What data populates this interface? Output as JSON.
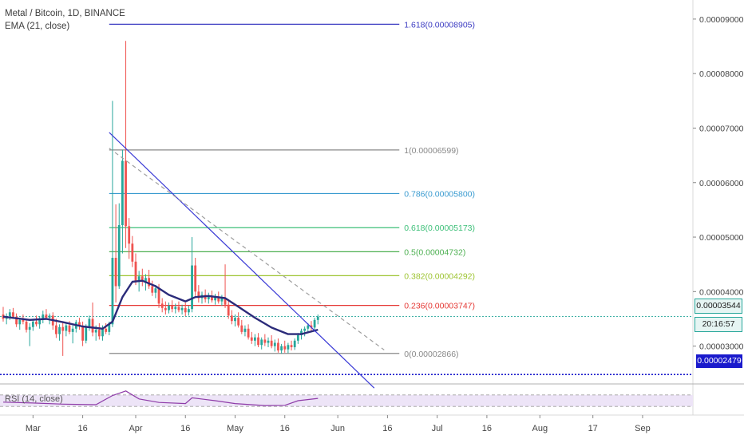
{
  "legend": {
    "title": "Metal / Bitcoin, 1D, BINANCE",
    "indicator": "EMA (21, close)",
    "rsi": "RSI (14, close)"
  },
  "price_tags": {
    "last_price": "0.00003544",
    "countdown": "20:16:57",
    "level": "0.00002479"
  },
  "colors": {
    "fib_1618": "#3d3dc2",
    "fib_1": "#888888",
    "fib_0786": "#3a9bd0",
    "fib_0618": "#3cbf78",
    "fib_05": "#4caf50",
    "fib_0382": "#9dc431",
    "fib_0236": "#e53935",
    "fib_0": "#888888",
    "ema": "#2b2b7a",
    "trendline": "#3b3bd6",
    "up_candle": "#26a69a",
    "down_candle": "#ef5350",
    "rsi_line": "#8e3ba8",
    "rsi_band": "#ede4f7",
    "dotted_level": "#1a1acc"
  },
  "chart_data": {
    "type": "candlestick",
    "symbol": "Metal / Bitcoin",
    "timeframe": "1D",
    "exchange": "BINANCE",
    "ylim": [
      2.35e-05,
      9.35e-05
    ],
    "y_ticks": [
      "0.00009000",
      "0.00008000",
      "0.00007000",
      "0.00006000",
      "0.00005000",
      "0.00004000",
      "0.00003000"
    ],
    "y_tick_values": [
      9e-05,
      8e-05,
      7e-05,
      6e-05,
      5e-05,
      4e-05,
      3e-05
    ],
    "x_ticks": [
      "Mar",
      "16",
      "Apr",
      "16",
      "May",
      "16",
      "Jun",
      "16",
      "Jul",
      "16",
      "Aug",
      "17",
      "Sep"
    ],
    "x_tick_dates": [
      "2019-03-01",
      "2019-03-16",
      "2019-04-01",
      "2019-04-16",
      "2019-05-01",
      "2019-05-16",
      "2019-06-01",
      "2019-06-16",
      "2019-07-01",
      "2019-07-16",
      "2019-08-01",
      "2019-08-17",
      "2019-09-01"
    ],
    "x_range": [
      "2019-02-20",
      "2019-09-12"
    ],
    "fib_levels": [
      {
        "ratio": "1.618",
        "label": "1.618(0.00008905)",
        "price": 8.905e-05
      },
      {
        "ratio": "1",
        "label": "1(0.00006599)",
        "price": 6.599e-05
      },
      {
        "ratio": "0.786",
        "label": "0.786(0.00005800)",
        "price": 5.8e-05
      },
      {
        "ratio": "0.618",
        "label": "0.618(0.00005173)",
        "price": 5.173e-05
      },
      {
        "ratio": "0.5",
        "label": "0.5(0.00004732)",
        "price": 4.732e-05
      },
      {
        "ratio": "0.382",
        "label": "0.382(0.00004292)",
        "price": 4.292e-05
      },
      {
        "ratio": "0.236",
        "label": "0.236(0.00003747)",
        "price": 3.747e-05
      },
      {
        "ratio": "0",
        "label": "0(0.00002866)",
        "price": 2.866e-05
      }
    ],
    "fib_range": [
      "2019-03-24",
      "2019-05-26"
    ],
    "ohlc": [
      {
        "t": "2019-02-20",
        "o": 3.58e-05,
        "h": 3.72e-05,
        "l": 3.45e-05,
        "c": 3.5e-05
      },
      {
        "t": "2019-02-21",
        "o": 3.5e-05,
        "h": 3.6e-05,
        "l": 3.4e-05,
        "c": 3.55e-05
      },
      {
        "t": "2019-02-22",
        "o": 3.55e-05,
        "h": 3.68e-05,
        "l": 3.48e-05,
        "c": 3.62e-05
      },
      {
        "t": "2019-02-23",
        "o": 3.62e-05,
        "h": 3.7e-05,
        "l": 3.5e-05,
        "c": 3.54e-05
      },
      {
        "t": "2019-02-24",
        "o": 3.54e-05,
        "h": 3.6e-05,
        "l": 3.35e-05,
        "c": 3.4e-05
      },
      {
        "t": "2019-02-25",
        "o": 3.4e-05,
        "h": 3.52e-05,
        "l": 3.3e-05,
        "c": 3.48e-05
      },
      {
        "t": "2019-02-26",
        "o": 3.48e-05,
        "h": 3.58e-05,
        "l": 3.4e-05,
        "c": 3.45e-05
      },
      {
        "t": "2019-02-27",
        "o": 3.45e-05,
        "h": 3.5e-05,
        "l": 3.25e-05,
        "c": 3.3e-05
      },
      {
        "t": "2019-02-28",
        "o": 3.3e-05,
        "h": 3.42e-05,
        "l": 3e-05,
        "c": 3.35e-05
      },
      {
        "t": "2019-03-01",
        "o": 3.35e-05,
        "h": 3.5e-05,
        "l": 3.28e-05,
        "c": 3.45e-05
      },
      {
        "t": "2019-03-02",
        "o": 3.45e-05,
        "h": 3.56e-05,
        "l": 3.36e-05,
        "c": 3.4e-05
      },
      {
        "t": "2019-03-03",
        "o": 3.4e-05,
        "h": 3.55e-05,
        "l": 3.32e-05,
        "c": 3.5e-05
      },
      {
        "t": "2019-03-04",
        "o": 3.5e-05,
        "h": 3.65e-05,
        "l": 3.42e-05,
        "c": 3.58e-05
      },
      {
        "t": "2019-03-05",
        "o": 3.58e-05,
        "h": 3.68e-05,
        "l": 3.48e-05,
        "c": 3.52e-05
      },
      {
        "t": "2019-03-06",
        "o": 3.52e-05,
        "h": 3.6e-05,
        "l": 3.4e-05,
        "c": 3.56e-05
      },
      {
        "t": "2019-03-07",
        "o": 3.56e-05,
        "h": 3.62e-05,
        "l": 3.3e-05,
        "c": 3.38e-05
      },
      {
        "t": "2019-03-08",
        "o": 3.38e-05,
        "h": 3.5e-05,
        "l": 3.15e-05,
        "c": 3.22e-05
      },
      {
        "t": "2019-03-09",
        "o": 3.22e-05,
        "h": 3.4e-05,
        "l": 3.1e-05,
        "c": 3.35e-05
      },
      {
        "t": "2019-03-10",
        "o": 3.35e-05,
        "h": 3.45e-05,
        "l": 2.82e-05,
        "c": 3.28e-05
      },
      {
        "t": "2019-03-11",
        "o": 3.28e-05,
        "h": 3.42e-05,
        "l": 3.18e-05,
        "c": 3.38e-05
      },
      {
        "t": "2019-03-12",
        "o": 3.38e-05,
        "h": 3.46e-05,
        "l": 3.22e-05,
        "c": 3.26e-05
      },
      {
        "t": "2019-03-13",
        "o": 3.26e-05,
        "h": 3.38e-05,
        "l": 3.05e-05,
        "c": 3.32e-05
      },
      {
        "t": "2019-03-14",
        "o": 3.32e-05,
        "h": 3.48e-05,
        "l": 3.25e-05,
        "c": 3.44e-05
      },
      {
        "t": "2019-03-15",
        "o": 3.44e-05,
        "h": 3.52e-05,
        "l": 3.3e-05,
        "c": 3.36e-05
      },
      {
        "t": "2019-03-16",
        "o": 3.36e-05,
        "h": 3.45e-05,
        "l": 3e-05,
        "c": 3.1e-05
      },
      {
        "t": "2019-03-17",
        "o": 3.1e-05,
        "h": 3.4e-05,
        "l": 3.05e-05,
        "c": 3.35e-05
      },
      {
        "t": "2019-03-18",
        "o": 3.35e-05,
        "h": 3.56e-05,
        "l": 3.28e-05,
        "c": 3.5e-05
      },
      {
        "t": "2019-03-19",
        "o": 3.5e-05,
        "h": 3.8e-05,
        "l": 3.18e-05,
        "c": 3.25e-05
      },
      {
        "t": "2019-03-20",
        "o": 3.25e-05,
        "h": 3.38e-05,
        "l": 3.1e-05,
        "c": 3.3e-05
      },
      {
        "t": "2019-03-21",
        "o": 3.3e-05,
        "h": 3.42e-05,
        "l": 3.12e-05,
        "c": 3.18e-05
      },
      {
        "t": "2019-03-22",
        "o": 3.18e-05,
        "h": 3.38e-05,
        "l": 3.1e-05,
        "c": 3.32e-05
      },
      {
        "t": "2019-03-23",
        "o": 3.32e-05,
        "h": 3.42e-05,
        "l": 3.22e-05,
        "c": 3.26e-05
      },
      {
        "t": "2019-03-24",
        "o": 3.26e-05,
        "h": 3.45e-05,
        "l": 3.2e-05,
        "c": 3.4e-05
      },
      {
        "t": "2019-03-25",
        "o": 3.4e-05,
        "h": 7.5e-05,
        "l": 3.35e-05,
        "c": 4.62e-05
      },
      {
        "t": "2019-03-26",
        "o": 4.62e-05,
        "h": 5.6e-05,
        "l": 3.8e-05,
        "c": 4.1e-05
      },
      {
        "t": "2019-03-27",
        "o": 4.1e-05,
        "h": 5.62e-05,
        "l": 4.05e-05,
        "c": 5.22e-05
      },
      {
        "t": "2019-03-28",
        "o": 5.22e-05,
        "h": 6.6e-05,
        "l": 4.7e-05,
        "c": 6.4e-05
      },
      {
        "t": "2019-03-29",
        "o": 6.4e-05,
        "h": 8.6e-05,
        "l": 4.8e-05,
        "c": 5.2e-05
      },
      {
        "t": "2019-03-30",
        "o": 5.2e-05,
        "h": 5.35e-05,
        "l": 4.6e-05,
        "c": 4.88e-05
      },
      {
        "t": "2019-03-31",
        "o": 4.88e-05,
        "h": 5.02e-05,
        "l": 4.45e-05,
        "c": 4.55e-05
      },
      {
        "t": "2019-04-01",
        "o": 4.55e-05,
        "h": 4.7e-05,
        "l": 4.12e-05,
        "c": 4.2e-05
      },
      {
        "t": "2019-04-02",
        "o": 4.2e-05,
        "h": 4.38e-05,
        "l": 4e-05,
        "c": 4.28e-05
      },
      {
        "t": "2019-04-03",
        "o": 4.28e-05,
        "h": 4.42e-05,
        "l": 4.1e-05,
        "c": 4.18e-05
      },
      {
        "t": "2019-04-04",
        "o": 4.18e-05,
        "h": 4.32e-05,
        "l": 4.02e-05,
        "c": 4.25e-05
      },
      {
        "t": "2019-04-05",
        "o": 4.25e-05,
        "h": 4.4e-05,
        "l": 4.05e-05,
        "c": 4.1e-05
      },
      {
        "t": "2019-04-06",
        "o": 4.1e-05,
        "h": 4.2e-05,
        "l": 3.92e-05,
        "c": 3.98e-05
      },
      {
        "t": "2019-04-07",
        "o": 3.98e-05,
        "h": 4.12e-05,
        "l": 3.88e-05,
        "c": 4.06e-05
      },
      {
        "t": "2019-04-08",
        "o": 4.06e-05,
        "h": 4.14e-05,
        "l": 3.7e-05,
        "c": 3.78e-05
      },
      {
        "t": "2019-04-09",
        "o": 3.78e-05,
        "h": 3.88e-05,
        "l": 3.62e-05,
        "c": 3.7e-05
      },
      {
        "t": "2019-04-10",
        "o": 3.7e-05,
        "h": 3.82e-05,
        "l": 3.58e-05,
        "c": 3.66e-05
      },
      {
        "t": "2019-04-11",
        "o": 3.66e-05,
        "h": 3.8e-05,
        "l": 3.6e-05,
        "c": 3.74e-05
      },
      {
        "t": "2019-04-12",
        "o": 3.74e-05,
        "h": 3.84e-05,
        "l": 3.62e-05,
        "c": 3.68e-05
      },
      {
        "t": "2019-04-13",
        "o": 3.68e-05,
        "h": 3.78e-05,
        "l": 3.6e-05,
        "c": 3.72e-05
      },
      {
        "t": "2019-04-14",
        "o": 3.72e-05,
        "h": 3.82e-05,
        "l": 3.62e-05,
        "c": 3.66e-05
      },
      {
        "t": "2019-04-15",
        "o": 3.66e-05,
        "h": 3.76e-05,
        "l": 3.58e-05,
        "c": 3.7e-05
      },
      {
        "t": "2019-04-16",
        "o": 3.7e-05,
        "h": 3.8e-05,
        "l": 3.55e-05,
        "c": 3.62e-05
      },
      {
        "t": "2019-04-17",
        "o": 3.62e-05,
        "h": 3.74e-05,
        "l": 3.56e-05,
        "c": 3.68e-05
      },
      {
        "t": "2019-04-18",
        "o": 3.68e-05,
        "h": 5e-05,
        "l": 3.62e-05,
        "c": 4.48e-05
      },
      {
        "t": "2019-04-19",
        "o": 4.48e-05,
        "h": 4.62e-05,
        "l": 3.92e-05,
        "c": 4e-05
      },
      {
        "t": "2019-04-20",
        "o": 4e-05,
        "h": 4.12e-05,
        "l": 3.8e-05,
        "c": 3.88e-05
      },
      {
        "t": "2019-04-21",
        "o": 3.88e-05,
        "h": 4e-05,
        "l": 3.78e-05,
        "c": 3.94e-05
      },
      {
        "t": "2019-04-22",
        "o": 3.94e-05,
        "h": 4.04e-05,
        "l": 3.8e-05,
        "c": 3.86e-05
      },
      {
        "t": "2019-04-23",
        "o": 3.86e-05,
        "h": 3.98e-05,
        "l": 3.78e-05,
        "c": 3.92e-05
      },
      {
        "t": "2019-04-24",
        "o": 3.92e-05,
        "h": 4.02e-05,
        "l": 3.8e-05,
        "c": 3.84e-05
      },
      {
        "t": "2019-04-25",
        "o": 3.84e-05,
        "h": 3.96e-05,
        "l": 3.76e-05,
        "c": 3.9e-05
      },
      {
        "t": "2019-04-26",
        "o": 3.9e-05,
        "h": 4e-05,
        "l": 3.78e-05,
        "c": 3.82e-05
      },
      {
        "t": "2019-04-27",
        "o": 3.82e-05,
        "h": 3.94e-05,
        "l": 3.74e-05,
        "c": 3.88e-05
      },
      {
        "t": "2019-04-28",
        "o": 3.88e-05,
        "h": 4.5e-05,
        "l": 3.7e-05,
        "c": 3.76e-05
      },
      {
        "t": "2019-04-29",
        "o": 3.76e-05,
        "h": 3.86e-05,
        "l": 3.5e-05,
        "c": 3.56e-05
      },
      {
        "t": "2019-04-30",
        "o": 3.56e-05,
        "h": 3.66e-05,
        "l": 3.4e-05,
        "c": 3.46e-05
      },
      {
        "t": "2019-05-01",
        "o": 3.46e-05,
        "h": 3.58e-05,
        "l": 3.36e-05,
        "c": 3.52e-05
      },
      {
        "t": "2019-05-02",
        "o": 3.52e-05,
        "h": 3.62e-05,
        "l": 3.34e-05,
        "c": 3.38e-05
      },
      {
        "t": "2019-05-03",
        "o": 3.38e-05,
        "h": 3.48e-05,
        "l": 3.22e-05,
        "c": 3.26e-05
      },
      {
        "t": "2019-05-04",
        "o": 3.26e-05,
        "h": 3.38e-05,
        "l": 3.18e-05,
        "c": 3.32e-05
      },
      {
        "t": "2019-05-05",
        "o": 3.32e-05,
        "h": 3.4e-05,
        "l": 3.12e-05,
        "c": 3.16e-05
      },
      {
        "t": "2019-05-06",
        "o": 3.16e-05,
        "h": 3.26e-05,
        "l": 3.04e-05,
        "c": 3.1e-05
      },
      {
        "t": "2019-05-07",
        "o": 3.1e-05,
        "h": 3.22e-05,
        "l": 3e-05,
        "c": 3.16e-05
      },
      {
        "t": "2019-05-08",
        "o": 3.16e-05,
        "h": 3.24e-05,
        "l": 2.98e-05,
        "c": 3.02e-05
      },
      {
        "t": "2019-05-09",
        "o": 3.02e-05,
        "h": 3.16e-05,
        "l": 2.94e-05,
        "c": 3.12e-05
      },
      {
        "t": "2019-05-10",
        "o": 3.12e-05,
        "h": 3.22e-05,
        "l": 3e-05,
        "c": 3.06e-05
      },
      {
        "t": "2019-05-11",
        "o": 3.06e-05,
        "h": 3.16e-05,
        "l": 2.98e-05,
        "c": 3.1e-05
      },
      {
        "t": "2019-05-12",
        "o": 3.1e-05,
        "h": 3.2e-05,
        "l": 2.96e-05,
        "c": 3e-05
      },
      {
        "t": "2019-05-13",
        "o": 3e-05,
        "h": 3.12e-05,
        "l": 2.9e-05,
        "c": 3.06e-05
      },
      {
        "t": "2019-05-14",
        "o": 3.06e-05,
        "h": 3.14e-05,
        "l": 2.88e-05,
        "c": 2.92e-05
      },
      {
        "t": "2019-05-15",
        "o": 2.92e-05,
        "h": 3.04e-05,
        "l": 2.86e-05,
        "c": 3e-05
      },
      {
        "t": "2019-05-16",
        "o": 3e-05,
        "h": 3.1e-05,
        "l": 2.88e-05,
        "c": 2.94e-05
      },
      {
        "t": "2019-05-17",
        "o": 2.94e-05,
        "h": 3.06e-05,
        "l": 2.87e-05,
        "c": 3.02e-05
      },
      {
        "t": "2019-05-18",
        "o": 3.02e-05,
        "h": 3.1e-05,
        "l": 2.92e-05,
        "c": 2.98e-05
      },
      {
        "t": "2019-05-19",
        "o": 2.98e-05,
        "h": 3.14e-05,
        "l": 2.93e-05,
        "c": 3.1e-05
      },
      {
        "t": "2019-05-20",
        "o": 3.1e-05,
        "h": 3.24e-05,
        "l": 3.04e-05,
        "c": 3.2e-05
      },
      {
        "t": "2019-05-21",
        "o": 3.2e-05,
        "h": 3.32e-05,
        "l": 3.12e-05,
        "c": 3.28e-05
      },
      {
        "t": "2019-05-22",
        "o": 3.28e-05,
        "h": 3.36e-05,
        "l": 3.18e-05,
        "c": 3.32e-05
      },
      {
        "t": "2019-05-23",
        "o": 3.32e-05,
        "h": 3.42e-05,
        "l": 3.24e-05,
        "c": 3.38e-05
      },
      {
        "t": "2019-05-24",
        "o": 3.38e-05,
        "h": 3.46e-05,
        "l": 3.26e-05,
        "c": 3.34e-05
      },
      {
        "t": "2019-05-25",
        "o": 3.34e-05,
        "h": 3.52e-05,
        "l": 3.3e-05,
        "c": 3.48e-05
      },
      {
        "t": "2019-05-26",
        "o": 3.48e-05,
        "h": 3.58e-05,
        "l": 3.4e-05,
        "c": 3.54e-05
      }
    ],
    "ema_21": [
      {
        "t": "2019-02-20",
        "v": 3.54e-05
      },
      {
        "t": "2019-02-28",
        "v": 3.48e-05
      },
      {
        "t": "2019-03-05",
        "v": 3.5e-05
      },
      {
        "t": "2019-03-10",
        "v": 3.44e-05
      },
      {
        "t": "2019-03-16",
        "v": 3.36e-05
      },
      {
        "t": "2019-03-22",
        "v": 3.32e-05
      },
      {
        "t": "2019-03-25",
        "v": 3.45e-05
      },
      {
        "t": "2019-03-28",
        "v": 3.9e-05
      },
      {
        "t": "2019-03-31",
        "v": 4.18e-05
      },
      {
        "t": "2019-04-03",
        "v": 4.2e-05
      },
      {
        "t": "2019-04-07",
        "v": 4.1e-05
      },
      {
        "t": "2019-04-11",
        "v": 3.94e-05
      },
      {
        "t": "2019-04-16",
        "v": 3.82e-05
      },
      {
        "t": "2019-04-19",
        "v": 3.9e-05
      },
      {
        "t": "2019-04-23",
        "v": 3.92e-05
      },
      {
        "t": "2019-04-28",
        "v": 3.88e-05
      },
      {
        "t": "2019-05-02",
        "v": 3.72e-05
      },
      {
        "t": "2019-05-07",
        "v": 3.52e-05
      },
      {
        "t": "2019-05-12",
        "v": 3.34e-05
      },
      {
        "t": "2019-05-17",
        "v": 3.22e-05
      },
      {
        "t": "2019-05-21",
        "v": 3.22e-05
      },
      {
        "t": "2019-05-26",
        "v": 3.3e-05
      }
    ],
    "trendlines": [
      {
        "style": "solid",
        "from": {
          "t": "2019-03-24",
          "p": 6.92e-05
        },
        "to": {
          "t": "2019-06-12",
          "p": 2.23e-05
        }
      },
      {
        "style": "dashed",
        "from": {
          "t": "2019-03-24",
          "p": 6.63e-05
        },
        "to": {
          "t": "2019-06-15",
          "p": 2.93e-05
        }
      }
    ],
    "horizontal_levels": [
      {
        "style": "dotted",
        "price": 2.479e-05,
        "color_key": "dotted_level"
      },
      {
        "style": "dotted",
        "price": 3.544e-05,
        "color_key": "up_candle"
      }
    ],
    "rsi": {
      "period": 14,
      "range": [
        0,
        100
      ],
      "bands": [
        30,
        70
      ],
      "values": [
        {
          "t": "2019-02-20",
          "v": 45
        },
        {
          "t": "2019-03-01",
          "v": 42
        },
        {
          "t": "2019-03-10",
          "v": 38
        },
        {
          "t": "2019-03-20",
          "v": 36
        },
        {
          "t": "2019-03-25",
          "v": 68
        },
        {
          "t": "2019-03-29",
          "v": 84
        },
        {
          "t": "2019-04-02",
          "v": 56
        },
        {
          "t": "2019-04-08",
          "v": 44
        },
        {
          "t": "2019-04-16",
          "v": 40
        },
        {
          "t": "2019-04-18",
          "v": 60
        },
        {
          "t": "2019-04-25",
          "v": 50
        },
        {
          "t": "2019-05-01",
          "v": 40
        },
        {
          "t": "2019-05-10",
          "v": 33
        },
        {
          "t": "2019-05-16",
          "v": 34
        },
        {
          "t": "2019-05-20",
          "v": 50
        },
        {
          "t": "2019-05-26",
          "v": 58
        }
      ]
    }
  }
}
